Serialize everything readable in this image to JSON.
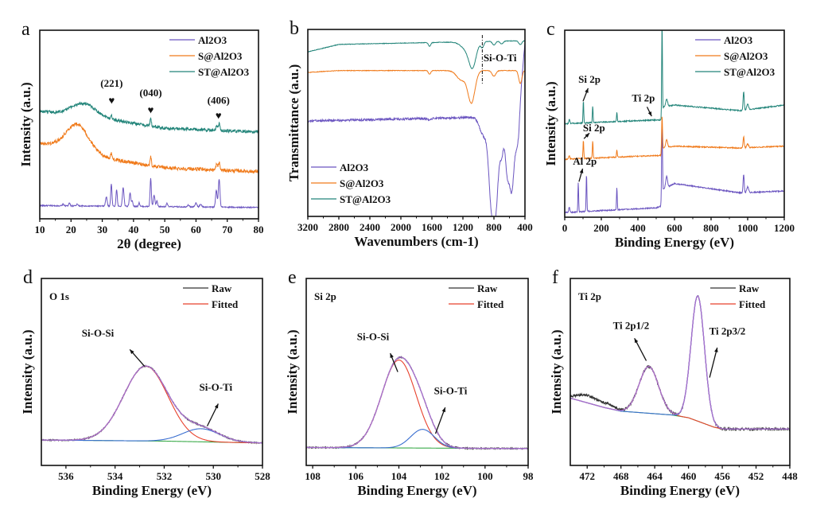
{
  "colors": {
    "al2o3": "#6b55c0",
    "s_al2o3": "#f07a1a",
    "st_al2o3": "#23857a",
    "raw": "#333333",
    "fitted": "#e8412c",
    "envelope": "#a76fcf",
    "component2": "#3a6fd0",
    "background": "#3bab4a"
  },
  "chart_data": [
    {
      "id": "a",
      "panel_label": "a",
      "type": "line",
      "title": "",
      "xlabel": "2θ (degree)",
      "ylabel": "Intensity (a.u.)",
      "xlim": [
        10,
        80
      ],
      "ylim": [
        0,
        100
      ],
      "xticks": [
        10,
        20,
        30,
        40,
        50,
        60,
        70,
        80
      ],
      "legend": {
        "placement": "top-right",
        "entries": [
          "Al2O3",
          "S@Al2O3",
          "ST@Al2O3"
        ]
      },
      "series": [
        {
          "name": "Al2O3",
          "color": "#6b55c0",
          "noise": 0.3,
          "baseline": [
            [
              10,
              7
            ],
            [
              80,
              6
            ]
          ],
          "peaks": [
            [
              17.5,
              1,
              0.2
            ],
            [
              19.5,
              1.5,
              0.2
            ],
            [
              22,
              1.2,
              0.2
            ],
            [
              31.3,
              5,
              0.25
            ],
            [
              32.9,
              12,
              0.2
            ],
            [
              34.6,
              9,
              0.2
            ],
            [
              36.7,
              10,
              0.25
            ],
            [
              38.9,
              7,
              0.25
            ],
            [
              39.6,
              3,
              0.2
            ],
            [
              41.8,
              2,
              0.2
            ],
            [
              45.5,
              15,
              0.2
            ],
            [
              46.6,
              6,
              0.25
            ],
            [
              47.5,
              3,
              0.2
            ],
            [
              50.7,
              2,
              0.2
            ],
            [
              57.5,
              1,
              0.3
            ],
            [
              60,
              2,
              0.3
            ],
            [
              61.5,
              1.5,
              0.3
            ],
            [
              66.5,
              9,
              0.25
            ],
            [
              67.4,
              15,
              0.25
            ]
          ]
        },
        {
          "name": "S@Al2O3",
          "color": "#f07a1a",
          "noise": 0.9,
          "baseline": [
            [
              10,
              40
            ],
            [
              15,
              39
            ],
            [
              35,
              31
            ],
            [
              50,
              27
            ],
            [
              80,
              25
            ]
          ],
          "peaks": [
            [
              22,
              14,
              3.5
            ],
            [
              32.9,
              3,
              0.2
            ],
            [
              45.5,
              5,
              0.2
            ],
            [
              66.6,
              3,
              0.25
            ],
            [
              67.4,
              4,
              0.25
            ]
          ]
        },
        {
          "name": "ST@Al2O3",
          "color": "#23857a",
          "noise": 0.8,
          "baseline": [
            [
              10,
              57
            ],
            [
              15,
              56
            ],
            [
              35,
              52
            ],
            [
              50,
              48
            ],
            [
              80,
              46
            ]
          ],
          "peaks": [
            [
              24,
              7,
              4
            ],
            [
              32.9,
              2,
              0.2
            ],
            [
              45.5,
              4,
              0.2
            ],
            [
              66.6,
              2,
              0.25
            ],
            [
              67.4,
              3.5,
              0.25
            ]
          ]
        }
      ],
      "annotations": [
        {
          "text": "(221)",
          "x": 33,
          "y": 70,
          "marker": "♥",
          "marker_y": 63
        },
        {
          "text": "(040)",
          "x": 45.5,
          "y": 65,
          "marker": "♥",
          "marker_y": 58
        },
        {
          "text": "(406)",
          "x": 67.2,
          "y": 61,
          "marker": "♥",
          "marker_y": 55
        }
      ]
    },
    {
      "id": "b",
      "panel_label": "b",
      "type": "line",
      "title": "",
      "xlabel": "Wavenumbers (cm-1)",
      "ylabel": "Transmittance (a.u.)",
      "xlim": [
        3200,
        400
      ],
      "ylim": [
        0,
        100
      ],
      "xticks": [
        3200,
        2800,
        2400,
        2000,
        1600,
        1200,
        800,
        400
      ],
      "legend": {
        "placement": "bottom-left",
        "entries": [
          "Al2O3",
          "S@Al2O3",
          "ST@Al2O3"
        ]
      },
      "series": [
        {
          "name": "Al2O3",
          "color": "#6b55c0",
          "noise": 0.6,
          "baseline": [
            [
              3200,
              51
            ],
            [
              1000,
              53
            ],
            [
              480,
              55
            ],
            [
              400,
              93
            ]
          ],
          "peaks": [
            [
              1630,
              -0.8,
              15
            ],
            [
              930,
              -10,
              50
            ],
            [
              830,
              -46,
              35
            ],
            [
              770,
              -40,
              30
            ],
            [
              700,
              -20,
              25
            ],
            [
              630,
              -28,
              25
            ],
            [
              570,
              -40,
              30
            ],
            [
              500,
              -15,
              25
            ]
          ]
        },
        {
          "name": "S@Al2O3",
          "color": "#f07a1a",
          "noise": 0.15,
          "baseline": [
            [
              3200,
              77
            ],
            [
              2800,
              78
            ],
            [
              400,
              78
            ]
          ],
          "peaks": [
            [
              1630,
              -2,
              15
            ],
            [
              1220,
              -5,
              60
            ],
            [
              1090,
              -17,
              45
            ],
            [
              800,
              -3,
              25
            ],
            [
              460,
              -7,
              20
            ]
          ]
        },
        {
          "name": "ST@Al2O3",
          "color": "#23857a",
          "noise": 0.15,
          "baseline": [
            [
              3200,
              88
            ],
            [
              2800,
              92
            ],
            [
              400,
              94
            ]
          ],
          "peaks": [
            [
              1630,
              -2,
              15
            ],
            [
              1150,
              -4,
              70
            ],
            [
              1075,
              -12,
              45
            ],
            [
              950,
              -3,
              20
            ],
            [
              800,
              -2,
              20
            ],
            [
              700,
              -1.5,
              20
            ],
            [
              460,
              -2,
              20
            ]
          ]
        }
      ],
      "annotations": [
        {
          "text": "Si-O-Ti",
          "x": 935,
          "y": 83,
          "dashed_line": {
            "x": 950,
            "y_from": 97,
            "y_to": 71
          }
        }
      ]
    },
    {
      "id": "c",
      "panel_label": "c",
      "type": "line",
      "title": "",
      "xlabel": "Binding Energy (eV)",
      "ylabel": "Intensity (a.u.)",
      "xlim": [
        0,
        1200
      ],
      "ylim": [
        0,
        100
      ],
      "xticks": [
        0,
        200,
        400,
        600,
        800,
        1000,
        1200
      ],
      "legend": {
        "placement": "top-right",
        "entries": [
          "Al2O3",
          "S@Al2O3",
          "ST@Al2O3"
        ]
      },
      "series": [
        {
          "name": "Al2O3",
          "color": "#6b55c0",
          "noise": 0.3,
          "baseline": [
            [
              0,
              2.5
            ],
            [
              500,
              5
            ],
            [
              528,
              6
            ],
            [
              540,
              15
            ],
            [
              600,
              18
            ],
            [
              960,
              13
            ],
            [
              1200,
              14
            ]
          ],
          "peaks": [
            [
              25,
              3,
              3
            ],
            [
              74,
              16,
              2
            ],
            [
              119,
              20,
              2
            ],
            [
              285,
              12,
              2
            ],
            [
              532,
              40,
              2.5
            ],
            [
              557,
              6,
              5
            ],
            [
              978,
              10,
              3
            ],
            [
              1000,
              3,
              5
            ]
          ]
        },
        {
          "name": "S@Al2O3",
          "color": "#f07a1a",
          "noise": 0.3,
          "baseline": [
            [
              0,
              31
            ],
            [
              500,
              33
            ],
            [
              528,
              33
            ],
            [
              540,
              37
            ],
            [
              600,
              38
            ],
            [
              960,
              37
            ],
            [
              1200,
              38
            ]
          ],
          "peaks": [
            [
              25,
              2,
              3
            ],
            [
              102,
              10,
              2
            ],
            [
              153,
              9,
              2
            ],
            [
              285,
              4,
              2
            ],
            [
              532,
              20,
              2.5
            ],
            [
              557,
              4,
              5
            ],
            [
              978,
              6,
              3
            ],
            [
              1000,
              2,
              5
            ]
          ]
        },
        {
          "name": "ST@Al2O3",
          "color": "#23857a",
          "noise": 0.3,
          "baseline": [
            [
              0,
              50
            ],
            [
              500,
              52
            ],
            [
              528,
              52
            ],
            [
              540,
              59
            ],
            [
              600,
              60
            ],
            [
              960,
              57
            ],
            [
              1200,
              60
            ]
          ],
          "peaks": [
            [
              25,
              2,
              3
            ],
            [
              102,
              12,
              2
            ],
            [
              153,
              9,
              2
            ],
            [
              285,
              5,
              2
            ],
            [
              532,
              50,
              2
            ],
            [
              557,
              4,
              5
            ],
            [
              978,
              10,
              3
            ],
            [
              1000,
              3,
              5
            ]
          ]
        }
      ],
      "annotations": [
        {
          "text": "Si 2p",
          "x": 135,
          "y": 72,
          "arrow": [
            [
              100,
              62
            ],
            [
              128,
              69
            ]
          ]
        },
        {
          "text": "Ti 2p",
          "x": 430,
          "y": 62,
          "arrow": [
            [
              450,
              59
            ],
            [
              475,
              54
            ]
          ]
        },
        {
          "text": "Si 2p",
          "x": 160,
          "y": 46,
          "arrow": [
            [
              105,
              42
            ],
            [
              135,
              45
            ]
          ]
        },
        {
          "text": "Al 2p",
          "x": 110,
          "y": 28,
          "arrow": [
            [
              78,
              19
            ],
            [
              98,
              26
            ]
          ]
        }
      ]
    },
    {
      "id": "d",
      "panel_label": "d",
      "type": "line",
      "inset_label": "O 1s",
      "title": "",
      "xlabel": "Binding Energy (eV)",
      "ylabel": "Intensity (a.u.)",
      "xlim": [
        537,
        528
      ],
      "ylim": [
        0,
        100
      ],
      "xticks": [
        536,
        534,
        532,
        530,
        528
      ],
      "legend": {
        "placement": "top-right",
        "entries": [
          "Raw",
          "Fitted"
        ]
      },
      "background": [
        [
          537,
          13.6
        ],
        [
          532,
          13
        ],
        [
          528,
          12
        ]
      ],
      "components": [
        {
          "name": "Si-O-Si",
          "color": "#e8412c",
          "center": 532.75,
          "height": 40,
          "sigma": 0.9
        },
        {
          "name": "Si-O-Ti",
          "color": "#3a6fd0",
          "center": 530.5,
          "height": 7,
          "sigma": 0.75
        }
      ],
      "raw_noise": 0.3,
      "annotations": [
        {
          "text": "Si-O-Si",
          "x": 534.7,
          "y": 69,
          "arrow": [
            [
              532.8,
              53
            ],
            [
              533.4,
              62
            ]
          ]
        },
        {
          "text": "Si-O-Ti",
          "x": 529.9,
          "y": 40,
          "arrow": [
            [
              530.25,
              21
            ],
            [
              529.8,
              33
            ]
          ]
        }
      ]
    },
    {
      "id": "e",
      "panel_label": "e",
      "type": "line",
      "inset_label": "Si 2p",
      "title": "",
      "xlabel": "Binding Energy (eV)",
      "ylabel": "Intensity (a.u.)",
      "xlim": [
        108.3,
        98
      ],
      "ylim": [
        0,
        100
      ],
      "xticks": [
        108,
        106,
        104,
        102,
        100,
        98
      ],
      "legend": {
        "placement": "top-right",
        "entries": [
          "Raw",
          "Fitted"
        ]
      },
      "background": [
        [
          108.3,
          9.6
        ],
        [
          98,
          9
        ]
      ],
      "components": [
        {
          "name": "Si-O-Si",
          "color": "#e8412c",
          "center": 104.0,
          "height": 47,
          "sigma": 0.8
        },
        {
          "name": "Si-O-Ti",
          "color": "#3a6fd0",
          "center": 102.9,
          "height": 10,
          "sigma": 0.55
        }
      ],
      "raw_noise": 0.3,
      "annotations": [
        {
          "text": "Si-O-Si",
          "x": 105.2,
          "y": 67,
          "arrow": [
            [
              104.05,
              50
            ],
            [
              104.4,
              60
            ]
          ]
        },
        {
          "text": "Si-O-Ti",
          "x": 101.6,
          "y": 38,
          "arrow": [
            [
              102.3,
              17
            ],
            [
              101.85,
              31
            ]
          ]
        }
      ]
    },
    {
      "id": "f",
      "panel_label": "f",
      "type": "line",
      "inset_label": "Ti 2p",
      "title": "",
      "xlabel": "Binding Energy (eV)",
      "ylabel": "Intensity (a.u.)",
      "xlim": [
        474,
        448
      ],
      "ylim": [
        0,
        100
      ],
      "xticks": [
        472,
        468,
        464,
        460,
        456,
        452,
        448
      ],
      "legend": {
        "placement": "top-right",
        "entries": [
          "Raw",
          "Fitted"
        ]
      },
      "background": [
        [
          474,
          36
        ],
        [
          470,
          31
        ],
        [
          468,
          29
        ],
        [
          462,
          27
        ],
        [
          460,
          25.5
        ],
        [
          458.5,
          23
        ],
        [
          457,
          20.5
        ],
        [
          456,
          19.5
        ],
        [
          448,
          19.5
        ]
      ],
      "components": [
        {
          "name": "Ti 2p1/2",
          "color": "#e8412c",
          "center": 464.7,
          "height": 25,
          "sigma": 1.15
        },
        {
          "name": "Ti 2p3/2",
          "color": "#3a6fd0",
          "center": 458.9,
          "height": 67,
          "sigma": 0.8
        }
      ],
      "raw_noise": 0.6,
      "raw_extra_peaks": [
        [
          472,
          4,
          1.2
        ],
        [
          469.5,
          2,
          0.8
        ]
      ],
      "annotations": [
        {
          "text": "Ti 2p1/2",
          "x": 466.8,
          "y": 73,
          "arrow": [
            [
              465.0,
              56
            ],
            [
              466.4,
              68
            ]
          ]
        },
        {
          "text": "Ti 2p3/2",
          "x": 455.4,
          "y": 70,
          "arrow": [
            [
              457.5,
              47
            ],
            [
              456.6,
              63
            ]
          ]
        }
      ]
    }
  ]
}
